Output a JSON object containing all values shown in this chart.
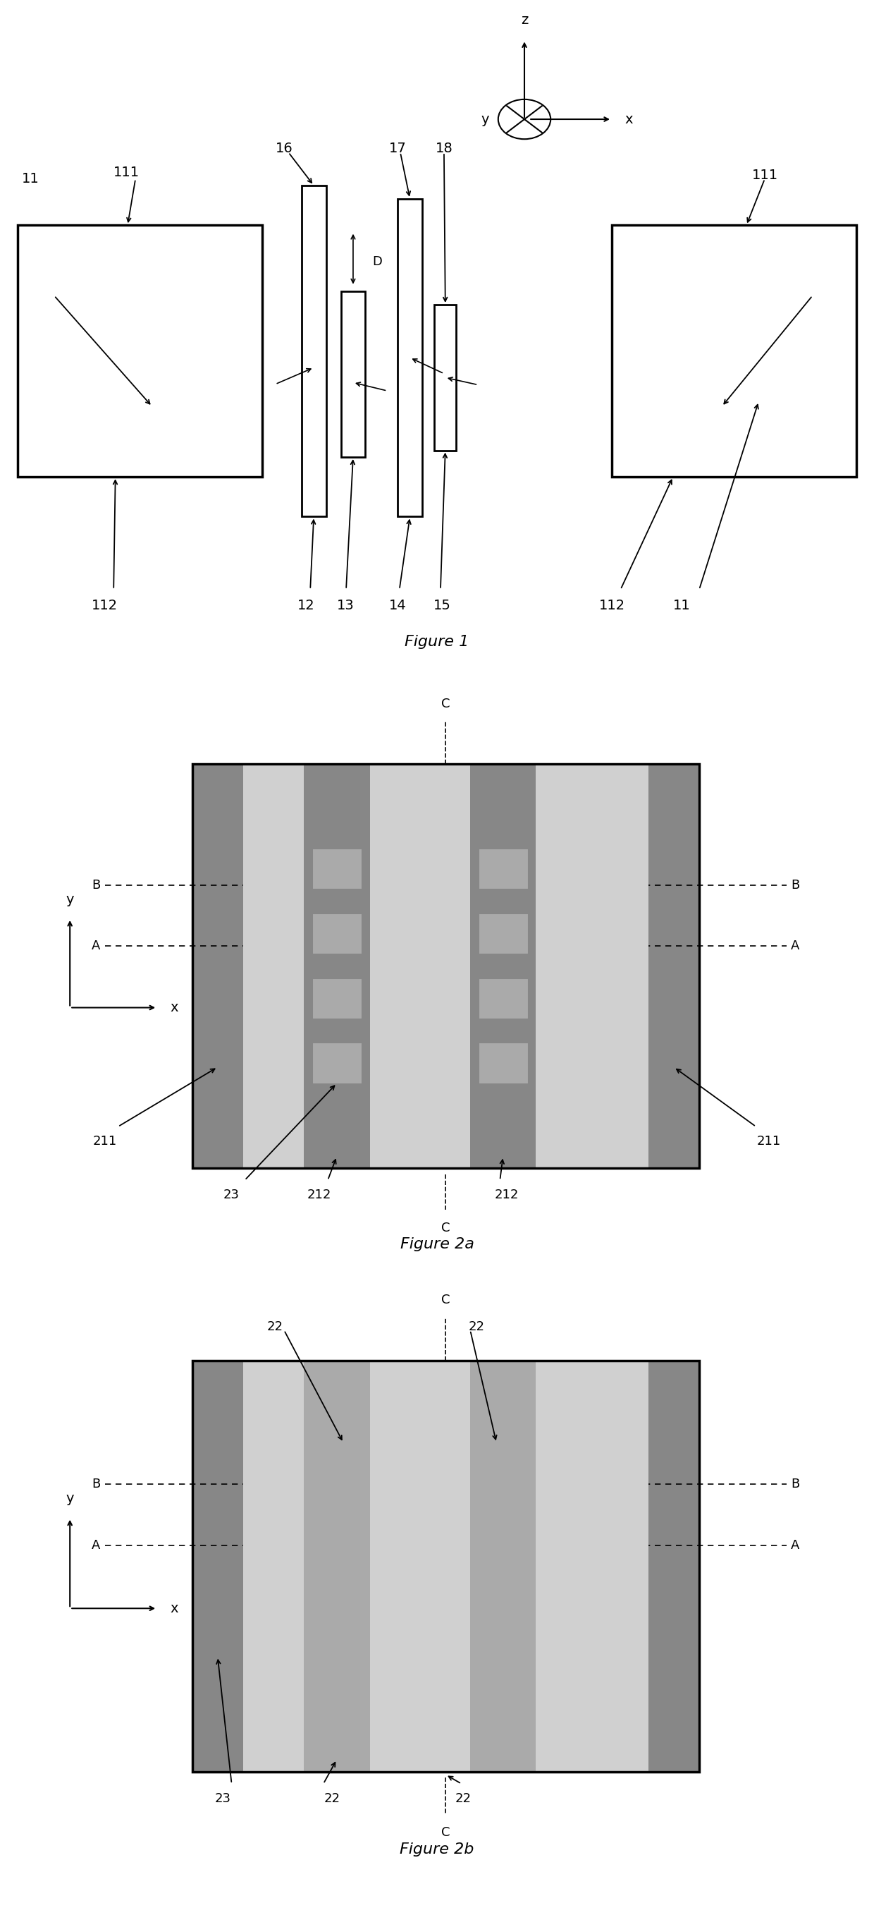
{
  "colors": {
    "dark_gray": "#878787",
    "medium_gray": "#aaaaaa",
    "light_gray": "#d0d0d0",
    "white": "#ffffff",
    "black": "#000000"
  },
  "fig1_title": "Figure 1",
  "fig2a_title": "Figure 2a",
  "fig2b_title": "Figure 2b"
}
